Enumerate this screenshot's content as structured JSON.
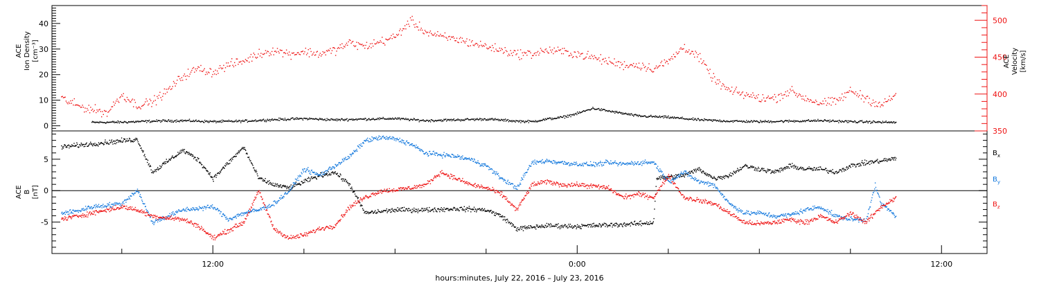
{
  "chart_data": [
    {
      "type": "scatter",
      "panel": "top",
      "ylabel_left": [
        "ACE",
        "Ion Density",
        "[cm⁻³]"
      ],
      "ylabel_right": [
        "ACE",
        "Velocity",
        "[km/s]"
      ],
      "ylim_left": [
        -2,
        47
      ],
      "ylim_right": [
        350,
        520
      ],
      "yticks_left": [
        "0",
        "10",
        "20",
        "30",
        "40"
      ],
      "yticks_right": [
        "350",
        "400",
        "450",
        "500"
      ],
      "series": [
        {
          "color": "#000000",
          "axis": "left",
          "points": [
            [
              -16,
              1.5
            ],
            [
              -15,
              1.6
            ],
            [
              -14,
              2.0
            ],
            [
              -13,
              2.2
            ],
            [
              -12,
              1.8
            ],
            [
              -11,
              2.0
            ],
            [
              -10,
              2.6
            ],
            [
              -9,
              3.0
            ],
            [
              -8,
              2.5
            ],
            [
              -7,
              2.8
            ],
            [
              -6,
              3.0
            ],
            [
              -5,
              2.2
            ],
            [
              -4,
              2.5
            ],
            [
              -3,
              2.8
            ],
            [
              -2,
              2.0
            ],
            [
              -1.5,
              1.8
            ],
            [
              -1,
              2.8
            ],
            [
              -0.5,
              3.5
            ],
            [
              0,
              5.0
            ],
            [
              0.5,
              7.0
            ],
            [
              1,
              6.0
            ],
            [
              2,
              4.0
            ],
            [
              3,
              3.5
            ],
            [
              4,
              2.5
            ],
            [
              5,
              2.0
            ],
            [
              6,
              1.8
            ],
            [
              7,
              2.0
            ],
            [
              8,
              2.2
            ],
            [
              9,
              1.8
            ],
            [
              10,
              1.6
            ],
            [
              10.5,
              1.5
            ]
          ]
        },
        {
          "color": "#ee1111",
          "axis": "right",
          "points": [
            [
              -17,
              395
            ],
            [
              -16.5,
              385
            ],
            [
              -16,
              380
            ],
            [
              -15.5,
              375
            ],
            [
              -15,
              400
            ],
            [
              -14.5,
              385
            ],
            [
              -14,
              390
            ],
            [
              -13.5,
              405
            ],
            [
              -13,
              425
            ],
            [
              -12.5,
              435
            ],
            [
              -12,
              430
            ],
            [
              -11.5,
              440
            ],
            [
              -11,
              445
            ],
            [
              -10.5,
              455
            ],
            [
              -10,
              460
            ],
            [
              -9.5,
              455
            ],
            [
              -9,
              458
            ],
            [
              -8.5,
              455
            ],
            [
              -8,
              460
            ],
            [
              -7.5,
              470
            ],
            [
              -7,
              465
            ],
            [
              -6,
              478
            ],
            [
              -5.5,
              500
            ],
            [
              -5,
              485
            ],
            [
              -4.5,
              478
            ],
            [
              -4,
              475
            ],
            [
              -3.5,
              470
            ],
            [
              -3,
              465
            ],
            [
              -2.5,
              460
            ],
            [
              -2,
              455
            ],
            [
              -1.5,
              455
            ],
            [
              -1,
              460
            ],
            [
              -0.5,
              458
            ],
            [
              0,
              455
            ],
            [
              0.5,
              450
            ],
            [
              1,
              445
            ],
            [
              1.5,
              440
            ],
            [
              2,
              440
            ],
            [
              2.5,
              435
            ],
            [
              3,
              445
            ],
            [
              3.5,
              465
            ],
            [
              4,
              450
            ],
            [
              4.5,
              420
            ],
            [
              5,
              405
            ],
            [
              5.5,
              400
            ],
            [
              6,
              395
            ],
            [
              6.5,
              395
            ],
            [
              7,
              405
            ],
            [
              7.5,
              395
            ],
            [
              8,
              388
            ],
            [
              8.5,
              390
            ],
            [
              9,
              405
            ],
            [
              9.5,
              395
            ],
            [
              10,
              385
            ],
            [
              10.5,
              400
            ]
          ]
        }
      ]
    },
    {
      "type": "scatter",
      "panel": "bottom",
      "ylabel_left": [
        "ACE",
        "B",
        "[nT]"
      ],
      "ylim": [
        -10,
        9.5
      ],
      "yticks": [
        "-5",
        "0",
        "5"
      ],
      "zero_line": true,
      "legend": [
        {
          "label": "B",
          "sub": "x",
          "color": "#000000"
        },
        {
          "label": "B",
          "sub": "y",
          "color": "#1177dd"
        },
        {
          "label": "B",
          "sub": "z",
          "color": "#ee1111"
        }
      ],
      "series": [
        {
          "name": "Bx",
          "color": "#000000",
          "points": [
            [
              -17,
              7.0
            ],
            [
              -16,
              7.5
            ],
            [
              -15,
              8.0
            ],
            [
              -14.5,
              8.2
            ],
            [
              -14,
              3.0
            ],
            [
              -13,
              6.5
            ],
            [
              -12.5,
              5.0
            ],
            [
              -12,
              2.0
            ],
            [
              -11,
              7.0
            ],
            [
              -10.5,
              2.0
            ],
            [
              -10,
              1.0
            ],
            [
              -9.5,
              0.5
            ],
            [
              -8.5,
              2.5
            ],
            [
              -8,
              3.0
            ],
            [
              -7.5,
              1.0
            ],
            [
              -7,
              -3.5
            ],
            [
              -6,
              -3.0
            ],
            [
              -5,
              -3.0
            ],
            [
              -4,
              -2.8
            ],
            [
              -3,
              -3.0
            ],
            [
              -2.5,
              -4.0
            ],
            [
              -2,
              -6.0
            ],
            [
              -1,
              -5.5
            ],
            [
              0,
              -5.6
            ],
            [
              1,
              -5.4
            ],
            [
              2,
              -5.2
            ],
            [
              2.5,
              -5.0
            ],
            [
              2.6,
              2.0
            ],
            [
              3.5,
              2.5
            ],
            [
              4,
              3.5
            ],
            [
              4.5,
              2.0
            ],
            [
              5,
              2.5
            ],
            [
              5.5,
              4.0
            ],
            [
              6,
              3.5
            ],
            [
              6.5,
              3.0
            ],
            [
              7,
              4.0
            ],
            [
              7.5,
              3.5
            ],
            [
              8,
              3.5
            ],
            [
              8.5,
              3.0
            ],
            [
              9,
              4.0
            ],
            [
              9.5,
              4.5
            ],
            [
              10,
              4.8
            ],
            [
              10.5,
              5.2
            ]
          ]
        },
        {
          "name": "By",
          "color": "#1177dd",
          "points": [
            [
              -17,
              -3.5
            ],
            [
              -16.5,
              -3.2
            ],
            [
              -16,
              -2.5
            ],
            [
              -15,
              -2.0
            ],
            [
              -14.5,
              0.2
            ],
            [
              -14,
              -5.0
            ],
            [
              -13,
              -3.0
            ],
            [
              -12,
              -2.5
            ],
            [
              -11.5,
              -4.5
            ],
            [
              -11,
              -3.5
            ],
            [
              -10.5,
              -3.0
            ],
            [
              -10,
              -2.0
            ],
            [
              -9.5,
              0.0
            ],
            [
              -9,
              3.5
            ],
            [
              -8.5,
              2.5
            ],
            [
              -8,
              4.0
            ],
            [
              -7.5,
              5.5
            ],
            [
              -7,
              8.0
            ],
            [
              -6.5,
              8.5
            ],
            [
              -6,
              8.3
            ],
            [
              -5.5,
              7.5
            ],
            [
              -5,
              6.0
            ],
            [
              -4.5,
              5.8
            ],
            [
              -4,
              5.5
            ],
            [
              -3.5,
              5.0
            ],
            [
              -3,
              4.0
            ],
            [
              -2.5,
              2.0
            ],
            [
              -2,
              0.5
            ],
            [
              -1.5,
              4.5
            ],
            [
              -1,
              4.8
            ],
            [
              -0.5,
              4.5
            ],
            [
              0,
              4.3
            ],
            [
              0.5,
              4.2
            ],
            [
              1,
              4.5
            ],
            [
              1.5,
              4.3
            ],
            [
              2,
              4.5
            ],
            [
              2.5,
              4.6
            ],
            [
              3,
              1.5
            ],
            [
              3.5,
              3.0
            ],
            [
              4,
              1.5
            ],
            [
              4.5,
              1.0
            ],
            [
              5,
              -2.0
            ],
            [
              5.5,
              -3.5
            ],
            [
              6,
              -3.5
            ],
            [
              6.5,
              -4.0
            ],
            [
              7,
              -3.8
            ],
            [
              7.5,
              -3.0
            ],
            [
              8,
              -2.5
            ],
            [
              8.5,
              -4.0
            ],
            [
              9,
              -4.5
            ],
            [
              9.5,
              -4.6
            ],
            [
              9.8,
              0.8
            ],
            [
              10,
              -2.0
            ],
            [
              10.5,
              -4.0
            ]
          ]
        },
        {
          "name": "Bz",
          "color": "#ee1111",
          "points": [
            [
              -17,
              -4.5
            ],
            [
              -16,
              -3.5
            ],
            [
              -15,
              -2.5
            ],
            [
              -14.5,
              -3.0
            ],
            [
              -14,
              -4.0
            ],
            [
              -13,
              -4.5
            ],
            [
              -12.5,
              -5.5
            ],
            [
              -12,
              -7.5
            ],
            [
              -11,
              -5.0
            ],
            [
              -10.5,
              0.0
            ],
            [
              -10,
              -6.0
            ],
            [
              -9.5,
              -7.5
            ],
            [
              -9,
              -7.0
            ],
            [
              -8.5,
              -6.0
            ],
            [
              -8,
              -5.5
            ],
            [
              -7.5,
              -2.5
            ],
            [
              -7,
              -1.0
            ],
            [
              -6.5,
              0.0
            ],
            [
              -6,
              0.2
            ],
            [
              -5.5,
              0.5
            ],
            [
              -5,
              1.0
            ],
            [
              -4.5,
              3.0
            ],
            [
              -4,
              2.0
            ],
            [
              -3.5,
              1.0
            ],
            [
              -3,
              0.5
            ],
            [
              -2.5,
              -0.5
            ],
            [
              -2,
              -3.0
            ],
            [
              -1.5,
              1.0
            ],
            [
              -1,
              1.5
            ],
            [
              -0.5,
              1.0
            ],
            [
              0,
              1.0
            ],
            [
              0.5,
              0.8
            ],
            [
              1,
              0.5
            ],
            [
              1.5,
              -1.0
            ],
            [
              2,
              -0.5
            ],
            [
              2.5,
              -1.0
            ],
            [
              3,
              2.5
            ],
            [
              3.5,
              -1.0
            ],
            [
              4,
              -1.5
            ],
            [
              4.5,
              -2.0
            ],
            [
              5,
              -3.5
            ],
            [
              5.5,
              -5.0
            ],
            [
              6,
              -5.2
            ],
            [
              6.5,
              -5.0
            ],
            [
              7,
              -4.5
            ],
            [
              7.5,
              -5.0
            ],
            [
              8,
              -4.0
            ],
            [
              8.5,
              -5.0
            ],
            [
              9,
              -3.5
            ],
            [
              9.5,
              -5.0
            ],
            [
              10,
              -2.5
            ],
            [
              10.5,
              -1.0
            ]
          ]
        }
      ]
    }
  ],
  "x_axis": {
    "xlim_hours": [
      -17.3,
      13.5
    ],
    "tick_labels": [
      {
        "hour": -12,
        "label": "12:00"
      },
      {
        "hour": 0,
        "label": "0:00"
      },
      {
        "hour": 12,
        "label": "12:00"
      }
    ],
    "xlabel": "hours:minutes, July 22, 2016 – July 23, 2016"
  }
}
